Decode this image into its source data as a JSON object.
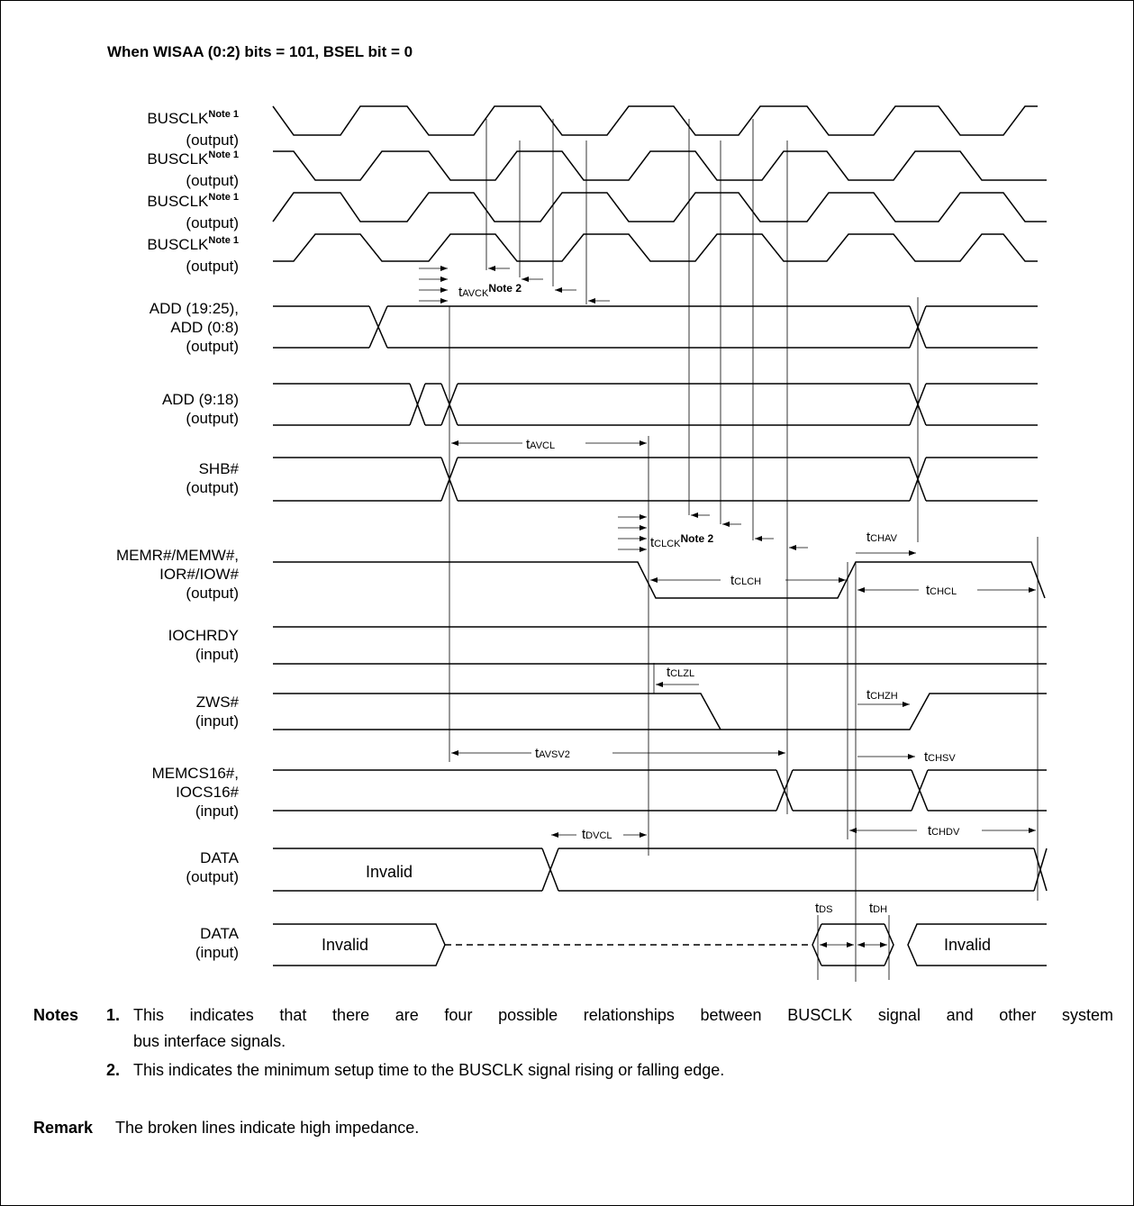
{
  "title": "When WISAA (0:2) bits = 101, BSEL bit = 0",
  "signals": [
    {
      "name": "BUSCLK",
      "sup": "Note 1",
      "dir": "(output)"
    },
    {
      "name": "BUSCLK",
      "sup": "Note 1",
      "dir": "(output)"
    },
    {
      "name": "BUSCLK",
      "sup": "Note 1",
      "dir": "(output)"
    },
    {
      "name": "BUSCLK",
      "sup": "Note 1",
      "dir": "(output)"
    },
    {
      "name": "ADD (19:25),",
      "name2": "ADD (0:8)",
      "dir": "(output)"
    },
    {
      "name": "ADD (9:18)",
      "dir": "(output)"
    },
    {
      "name": "SHB#",
      "dir": "(output)"
    },
    {
      "name": "MEMR#/MEMW#,",
      "name2": "IOR#/IOW#",
      "dir": "(output)"
    },
    {
      "name": "IOCHRDY",
      "dir": "(input)"
    },
    {
      "name": "ZWS#",
      "dir": "(input)"
    },
    {
      "name": "MEMCS16#,",
      "name2": "IOCS16#",
      "dir": "(input)"
    },
    {
      "name": "DATA",
      "dir": "(output)"
    },
    {
      "name": "DATA",
      "dir": "(input)"
    }
  ],
  "timings": {
    "avck": {
      "t": "t",
      "sub": "AVCK",
      "note": "Note 2"
    },
    "avcl": {
      "t": "t",
      "sub": "AVCL"
    },
    "clck": {
      "t": "t",
      "sub": "CLCK",
      "note": "Note 2"
    },
    "chav": {
      "t": "t",
      "sub": "CHAV"
    },
    "clch": {
      "t": "t",
      "sub": "CLCH"
    },
    "chcl": {
      "t": "t",
      "sub": "CHCL"
    },
    "clzl": {
      "t": "t",
      "sub": "CLZL"
    },
    "chzh": {
      "t": "t",
      "sub": "CHZH"
    },
    "avsv2": {
      "t": "t",
      "sub": "AVSV2"
    },
    "chsv": {
      "t": "t",
      "sub": "CHSV"
    },
    "dvcl": {
      "t": "t",
      "sub": "DVCL"
    },
    "chdv": {
      "t": "t",
      "sub": "CHDV"
    },
    "ds": {
      "t": "t",
      "sub": "DS"
    },
    "dh": {
      "t": "t",
      "sub": "DH"
    }
  },
  "levels": {
    "data_out_invalid": "Invalid",
    "data_in_invalid_left": "Invalid",
    "data_in_invalid_right": "Invalid"
  },
  "notes": {
    "heading": "Notes",
    "n1_num": "1.",
    "n1_text_line1": "This indicates that there are four possible relationships between BUSCLK signal and other system",
    "n1_text_line2": "bus interface signals.",
    "n2_num": "2.",
    "n2_text": "This indicates the minimum setup time to the BUSCLK signal rising or falling edge.",
    "remark_label": "Remark",
    "remark_text": "The broken lines indicate high impedance."
  }
}
